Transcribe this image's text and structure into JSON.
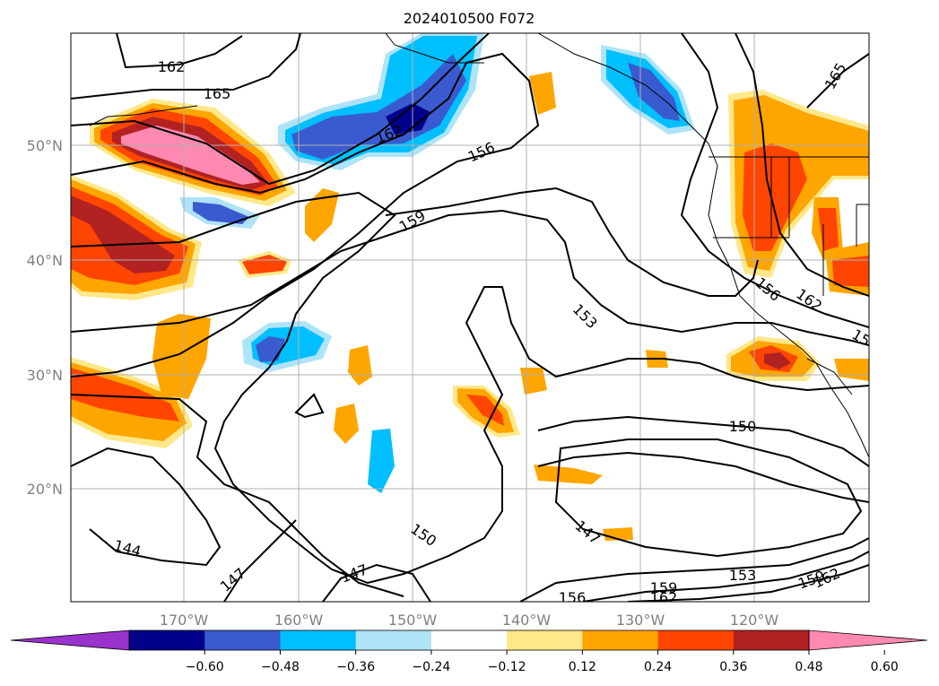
{
  "title": "2024010500 F072",
  "lat_labels": [
    "50°N",
    "40°N",
    "30°N",
    "20°N"
  ],
  "lon_labels": [
    "170°W",
    "160°W",
    "150°W",
    "140°W",
    "130°W",
    "120°W"
  ],
  "colorbar": {
    "colors": [
      "#9933cc",
      "#00008b",
      "#3a5bd0",
      "#00bfff",
      "#aee3f8",
      "#ffffff",
      "#ffe88a",
      "#ffa500",
      "#ff4500",
      "#b22222",
      "#ff89b0"
    ],
    "ticks": [
      "−0.60",
      "−0.48",
      "−0.36",
      "−0.24",
      "−0.12",
      "0.12",
      "0.24",
      "0.36",
      "0.48",
      "0.60"
    ]
  },
  "contour_labels": [
    "162",
    "165",
    "162",
    "156",
    "159",
    "153",
    "156",
    "162",
    "15",
    "165",
    "150",
    "147",
    "153",
    "159",
    "162",
    "159",
    "162",
    "150",
    "147",
    "144",
    "147",
    "156"
  ]
}
